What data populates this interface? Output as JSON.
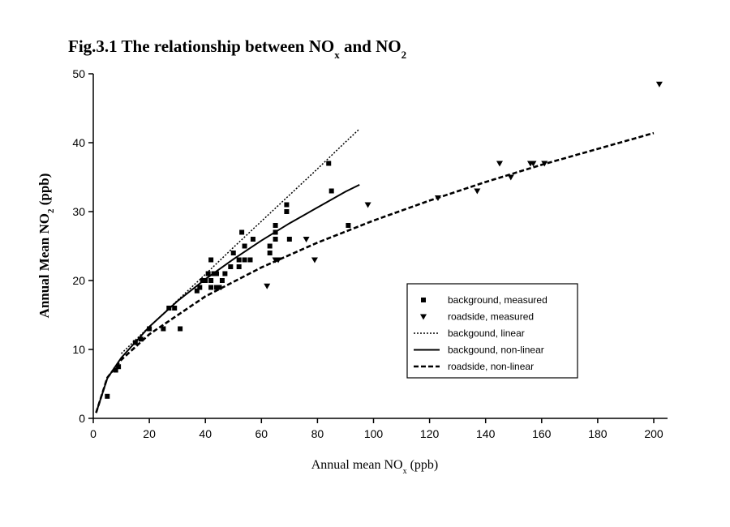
{
  "chart_data": {
    "type": "scatter",
    "title": [
      "Fig.3.1 The relationship between NO",
      "x",
      " and NO",
      "2"
    ],
    "ylabel": [
      "Annual Mean NO",
      "2",
      " (ppb)"
    ],
    "xlabel": [
      "Annual mean NO",
      "x",
      " (ppb)"
    ],
    "xlim": [
      0,
      200
    ],
    "ylim": [
      0,
      50
    ],
    "xticks": [
      0,
      20,
      40,
      60,
      80,
      100,
      120,
      140,
      160,
      180,
      200
    ],
    "yticks": [
      0,
      10,
      20,
      30,
      40,
      50
    ],
    "legend": "right",
    "series": [
      {
        "name": "background, measured",
        "color": "#000000",
        "marker": "square",
        "x": [
          5,
          8,
          9,
          15,
          17,
          20,
          25,
          27,
          29,
          31,
          37,
          38,
          39,
          40,
          41,
          42,
          42,
          42,
          43,
          44,
          44,
          45,
          46,
          47,
          49,
          50,
          52,
          52,
          53,
          54,
          54,
          56,
          57,
          63,
          63,
          65,
          65,
          65,
          69,
          69,
          70,
          84,
          85,
          91
        ],
        "values": [
          3.2,
          7,
          7.5,
          11,
          11.5,
          13,
          13,
          16,
          16,
          13,
          18.5,
          19,
          20,
          20,
          21,
          19,
          20,
          23,
          21,
          19,
          21,
          19,
          20,
          21,
          22,
          24,
          22,
          23,
          27,
          23,
          25,
          23,
          26,
          24,
          25,
          26,
          27,
          28,
          30,
          31,
          26,
          37,
          33,
          28
        ]
      },
      {
        "name": "roadside, measured",
        "color": "#000000",
        "marker": "triangle",
        "x": [
          62,
          65,
          66,
          76,
          79,
          98,
          123,
          137,
          145,
          149,
          156,
          157,
          161,
          202
        ],
        "values": [
          19.2,
          23,
          23,
          26,
          23,
          31,
          32,
          33,
          37,
          35,
          37,
          37,
          37,
          48.5
        ]
      },
      {
        "name": "backgound, linear",
        "color": "#000000",
        "line": "dotted",
        "x": [
          10,
          20,
          30,
          40,
          50,
          60,
          70,
          80,
          90,
          95
        ],
        "values": [
          9.4,
          13.3,
          17.1,
          20.9,
          24.8,
          28.6,
          32.4,
          36.2,
          40.1,
          42
        ]
      },
      {
        "name": "backgound, non-linear",
        "color": "#000000",
        "line": "solid",
        "x": [
          1,
          5,
          10,
          20,
          30,
          40,
          50,
          60,
          70,
          80,
          90,
          95
        ],
        "values": [
          0.8,
          5.8,
          8.8,
          13.3,
          17,
          20.2,
          23.1,
          25.8,
          28.3,
          30.6,
          32.9,
          33.9
        ]
      },
      {
        "name": "roadside, non-linear",
        "color": "#000000",
        "line": "dashed",
        "x": [
          1,
          5,
          10,
          20,
          40,
          60,
          80,
          100,
          120,
          140,
          160,
          180,
          200
        ],
        "values": [
          0.8,
          5.9,
          8.5,
          12.2,
          17.7,
          21.9,
          25.5,
          28.7,
          31.6,
          34.3,
          36.8,
          39.1,
          41.4
        ]
      }
    ]
  }
}
